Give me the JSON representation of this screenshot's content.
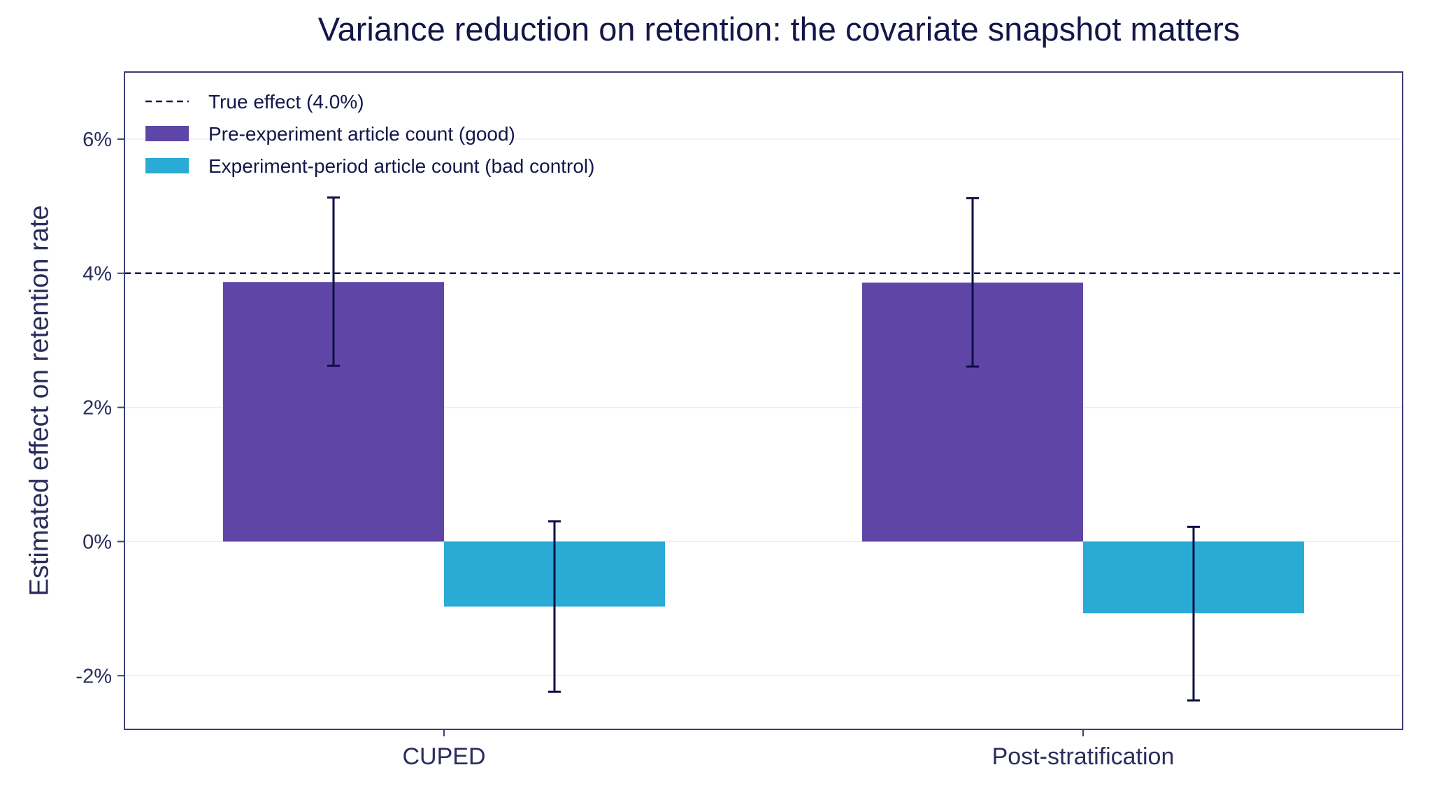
{
  "chart_data": {
    "type": "bar",
    "title": "Variance reduction on retention: the covariate snapshot matters",
    "xlabel": "",
    "ylabel": "Estimated effect on retention rate",
    "categories": [
      "CUPED",
      "Post-stratification"
    ],
    "series": [
      {
        "name": "Pre-experiment article count (good)",
        "color": "#5f45a6",
        "values": [
          3.87,
          3.86
        ],
        "err_low": [
          2.62,
          2.61
        ],
        "err_high": [
          5.13,
          5.12
        ]
      },
      {
        "name": "Experiment-period article count (bad control)",
        "color": "#29abd6",
        "values": [
          -0.97,
          -1.07
        ],
        "err_low": [
          -2.24,
          -2.37
        ],
        "err_high": [
          0.3,
          0.22
        ]
      }
    ],
    "reference_line": {
      "label": "True effect (4.0%)",
      "value": 4.0,
      "style": "dashed",
      "color": "#14164a"
    },
    "ylim": [
      -2.8,
      7.0
    ],
    "yticks": [
      -2,
      0,
      2,
      4,
      6
    ],
    "ytick_labels": [
      "-2%",
      "0%",
      "2%",
      "4%",
      "6%"
    ],
    "grid": "horizontal",
    "legend_position": "top-left"
  }
}
